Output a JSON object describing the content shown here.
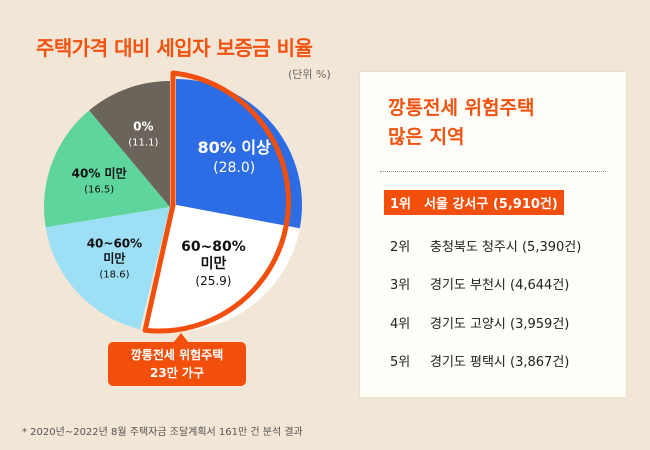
{
  "title": "주택가격 대비 세입자 보증금 비율",
  "unit": "(단위 %)",
  "chart_data": {
    "type": "pie",
    "title": "주택가격 대비 세입자 보증금 비율",
    "unit": "%",
    "slices": [
      {
        "label": "80% 이상",
        "value": 28.0,
        "value_text": "(28.0)",
        "color": "#2c6de6",
        "highlight": true
      },
      {
        "label": "60~80% 미만",
        "value": 25.9,
        "value_text": "(25.9)",
        "color": "#ffffff",
        "highlight": true
      },
      {
        "label": "40~60% 미만",
        "value": 18.6,
        "value_text": "(18.6)",
        "color": "#9ddff5",
        "highlight": false
      },
      {
        "label": "40% 미만",
        "value": 16.5,
        "value_text": "(16.5)",
        "color": "#5dd59c",
        "highlight": false
      },
      {
        "label": "0%",
        "value": 11.1,
        "value_text": "(11.1)",
        "color": "#6b645a",
        "highlight": false
      }
    ],
    "accent": "#f24f0c"
  },
  "callout": {
    "line1": "깡통전세 위험주택",
    "line2": "23만 가구"
  },
  "footnote": "* 2020년~2022년 8월 주택자금 조달계획서 161만 건 분석 결과",
  "card": {
    "title_line1": "깡통전세 위험주택",
    "title_line2": "많은 지역",
    "ranks": [
      {
        "rank": "1위",
        "region": "서울 강서구 (5,910건)"
      },
      {
        "rank": "2위",
        "region": "충청북도 청주시 (5,390건)"
      },
      {
        "rank": "3위",
        "region": "경기도 부천시 (4,644건)"
      },
      {
        "rank": "4위",
        "region": "경기도 고양시 (3,959건)"
      },
      {
        "rank": "5위",
        "region": "경기도 평택시 (3,867건)"
      }
    ]
  }
}
